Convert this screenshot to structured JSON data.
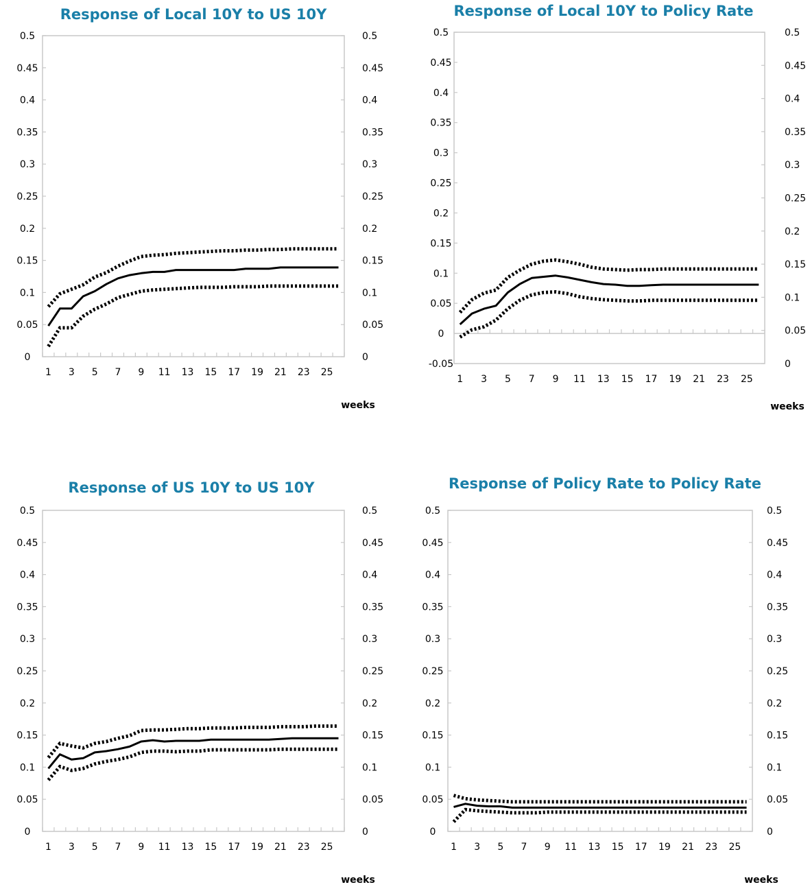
{
  "chart_data": [
    {
      "type": "line",
      "title": "Response of Local 10Y to US 10Y",
      "xlabel": "weeks",
      "x": [
        1,
        2,
        3,
        4,
        5,
        6,
        7,
        8,
        9,
        10,
        11,
        12,
        13,
        14,
        15,
        16,
        17,
        18,
        19,
        20,
        21,
        22,
        23,
        24,
        25,
        26
      ],
      "x_tick_labels": [
        "1",
        "3",
        "5",
        "7",
        "9",
        "11",
        "13",
        "15",
        "17",
        "19",
        "21",
        "23",
        "25"
      ],
      "ylim": [
        0,
        0.5
      ],
      "y_tick_labels": [
        "0",
        "0.05",
        "0.1",
        "0.15",
        "0.2",
        "0.25",
        "0.3",
        "0.35",
        "0.4",
        "0.45",
        "0.5"
      ],
      "y2lim": [
        0,
        0.5
      ],
      "y2_tick_labels": [
        "0",
        "0.05",
        "0.1",
        "0.15",
        "0.2",
        "0.25",
        "0.3",
        "0.35",
        "0.4",
        "0.45",
        "0.5"
      ],
      "grid": false,
      "series": [
        {
          "style": "solid",
          "values": [
            0.048,
            0.075,
            0.075,
            0.094,
            0.102,
            0.113,
            0.122,
            0.127,
            0.13,
            0.132,
            0.132,
            0.135,
            0.135,
            0.135,
            0.135,
            0.135,
            0.135,
            0.137,
            0.137,
            0.137,
            0.139,
            0.139,
            0.139,
            0.139,
            0.139,
            0.139
          ]
        },
        {
          "style": "dotted",
          "values": [
            0.078,
            0.098,
            0.105,
            0.112,
            0.124,
            0.131,
            0.141,
            0.149,
            0.156,
            0.158,
            0.159,
            0.161,
            0.162,
            0.163,
            0.164,
            0.165,
            0.165,
            0.166,
            0.166,
            0.167,
            0.167,
            0.168,
            0.168,
            0.168,
            0.168,
            0.168
          ]
        },
        {
          "style": "dotted",
          "values": [
            0.016,
            0.045,
            0.045,
            0.063,
            0.074,
            0.082,
            0.092,
            0.097,
            0.102,
            0.104,
            0.105,
            0.106,
            0.107,
            0.108,
            0.108,
            0.108,
            0.109,
            0.109,
            0.109,
            0.11,
            0.11,
            0.11,
            0.11,
            0.11,
            0.11,
            0.11
          ]
        }
      ]
    },
    {
      "type": "line",
      "title": "Response of Local 10Y to Policy Rate",
      "xlabel": "weeks",
      "x": [
        1,
        2,
        3,
        4,
        5,
        6,
        7,
        8,
        9,
        10,
        11,
        12,
        13,
        14,
        15,
        16,
        17,
        18,
        19,
        20,
        21,
        22,
        23,
        24,
        25,
        26
      ],
      "x_tick_labels": [
        "1",
        "3",
        "5",
        "7",
        "9",
        "11",
        "13",
        "15",
        "17",
        "19",
        "21",
        "23",
        "25"
      ],
      "ylim": [
        -0.05,
        0.5
      ],
      "y_tick_labels": [
        "-0.05",
        "0",
        "0.05",
        "0.1",
        "0.15",
        "0.2",
        "0.25",
        "0.3",
        "0.35",
        "0.4",
        "0.45",
        "0.5"
      ],
      "y2lim": [
        0,
        0.5
      ],
      "y2_tick_labels": [
        "0",
        "0.05",
        "0.1",
        "0.15",
        "0.2",
        "0.25",
        "0.3",
        "0.35",
        "0.4",
        "0.45",
        "0.5"
      ],
      "grid": false,
      "series": [
        {
          "style": "solid",
          "values": [
            0.015,
            0.033,
            0.041,
            0.046,
            0.068,
            0.082,
            0.092,
            0.094,
            0.096,
            0.093,
            0.089,
            0.085,
            0.082,
            0.081,
            0.079,
            0.079,
            0.08,
            0.081,
            0.081,
            0.081,
            0.081,
            0.081,
            0.081,
            0.081,
            0.081,
            0.081
          ]
        },
        {
          "style": "dotted",
          "values": [
            0.035,
            0.056,
            0.067,
            0.072,
            0.093,
            0.105,
            0.115,
            0.12,
            0.122,
            0.119,
            0.115,
            0.11,
            0.107,
            0.106,
            0.105,
            0.106,
            0.106,
            0.107,
            0.107,
            0.107,
            0.107,
            0.107,
            0.107,
            0.107,
            0.107,
            0.107
          ]
        },
        {
          "style": "dotted",
          "values": [
            -0.006,
            0.006,
            0.011,
            0.022,
            0.041,
            0.055,
            0.064,
            0.068,
            0.069,
            0.066,
            0.061,
            0.058,
            0.056,
            0.055,
            0.054,
            0.054,
            0.055,
            0.055,
            0.055,
            0.055,
            0.055,
            0.055,
            0.055,
            0.055,
            0.055,
            0.055
          ]
        }
      ]
    },
    {
      "type": "line",
      "title": "Response of US 10Y to US 10Y",
      "xlabel": "weeks",
      "x": [
        1,
        2,
        3,
        4,
        5,
        6,
        7,
        8,
        9,
        10,
        11,
        12,
        13,
        14,
        15,
        16,
        17,
        18,
        19,
        20,
        21,
        22,
        23,
        24,
        25,
        26
      ],
      "x_tick_labels": [
        "1",
        "3",
        "5",
        "7",
        "9",
        "11",
        "13",
        "15",
        "17",
        "19",
        "21",
        "23",
        "25"
      ],
      "ylim": [
        0,
        0.5
      ],
      "y_tick_labels": [
        "0",
        "0.05",
        "0.1",
        "0.15",
        "0.2",
        "0.25",
        "0.3",
        "0.35",
        "0.4",
        "0.45",
        "0.5"
      ],
      "y2lim": [
        0,
        0.5
      ],
      "y2_tick_labels": [
        "0",
        "0.05",
        "0.1",
        "0.15",
        "0.2",
        "0.25",
        "0.3",
        "0.35",
        "0.4",
        "0.45",
        "0.5"
      ],
      "grid": false,
      "series": [
        {
          "style": "solid",
          "values": [
            0.098,
            0.12,
            0.112,
            0.114,
            0.123,
            0.125,
            0.128,
            0.132,
            0.14,
            0.142,
            0.14,
            0.141,
            0.141,
            0.141,
            0.143,
            0.143,
            0.143,
            0.143,
            0.143,
            0.143,
            0.144,
            0.145,
            0.145,
            0.145,
            0.145,
            0.145
          ]
        },
        {
          "style": "dotted",
          "values": [
            0.115,
            0.137,
            0.133,
            0.13,
            0.137,
            0.14,
            0.145,
            0.149,
            0.157,
            0.158,
            0.158,
            0.159,
            0.16,
            0.16,
            0.161,
            0.161,
            0.161,
            0.162,
            0.162,
            0.162,
            0.163,
            0.163,
            0.163,
            0.164,
            0.164,
            0.164
          ]
        },
        {
          "style": "dotted",
          "values": [
            0.08,
            0.101,
            0.095,
            0.098,
            0.105,
            0.109,
            0.112,
            0.116,
            0.123,
            0.125,
            0.125,
            0.124,
            0.125,
            0.125,
            0.127,
            0.127,
            0.127,
            0.127,
            0.127,
            0.127,
            0.128,
            0.128,
            0.128,
            0.128,
            0.128,
            0.128
          ]
        }
      ]
    },
    {
      "type": "line",
      "title": "Response of Policy Rate to Policy Rate",
      "xlabel": "weeks",
      "x": [
        1,
        2,
        3,
        4,
        5,
        6,
        7,
        8,
        9,
        10,
        11,
        12,
        13,
        14,
        15,
        16,
        17,
        18,
        19,
        20,
        21,
        22,
        23,
        24,
        25,
        26
      ],
      "x_tick_labels": [
        "1",
        "3",
        "5",
        "7",
        "9",
        "11",
        "13",
        "15",
        "17",
        "19",
        "21",
        "23",
        "25"
      ],
      "ylim": [
        0,
        0.5
      ],
      "y_tick_labels": [
        "0",
        "0.05",
        "0.1",
        "0.15",
        "0.2",
        "0.25",
        "0.3",
        "0.35",
        "0.4",
        "0.45",
        "0.5"
      ],
      "y2lim": [
        0,
        0.5
      ],
      "y2_tick_labels": [
        "0",
        "0.05",
        "0.1",
        "0.15",
        "0.2",
        "0.25",
        "0.3",
        "0.35",
        "0.4",
        "0.45",
        "0.5"
      ],
      "grid": false,
      "series": [
        {
          "style": "solid",
          "values": [
            0.038,
            0.043,
            0.04,
            0.039,
            0.039,
            0.037,
            0.037,
            0.037,
            0.037,
            0.037,
            0.037,
            0.037,
            0.037,
            0.037,
            0.037,
            0.037,
            0.037,
            0.037,
            0.037,
            0.037,
            0.037,
            0.037,
            0.037,
            0.037,
            0.037,
            0.037
          ]
        },
        {
          "style": "dotted",
          "values": [
            0.056,
            0.051,
            0.049,
            0.048,
            0.047,
            0.046,
            0.046,
            0.046,
            0.046,
            0.046,
            0.046,
            0.046,
            0.046,
            0.046,
            0.046,
            0.046,
            0.046,
            0.046,
            0.046,
            0.046,
            0.046,
            0.046,
            0.046,
            0.046,
            0.046,
            0.046
          ]
        },
        {
          "style": "dotted",
          "values": [
            0.015,
            0.034,
            0.032,
            0.031,
            0.03,
            0.029,
            0.029,
            0.029,
            0.03,
            0.03,
            0.03,
            0.03,
            0.03,
            0.03,
            0.03,
            0.03,
            0.03,
            0.03,
            0.03,
            0.03,
            0.03,
            0.03,
            0.03,
            0.03,
            0.03,
            0.03
          ]
        }
      ]
    }
  ]
}
